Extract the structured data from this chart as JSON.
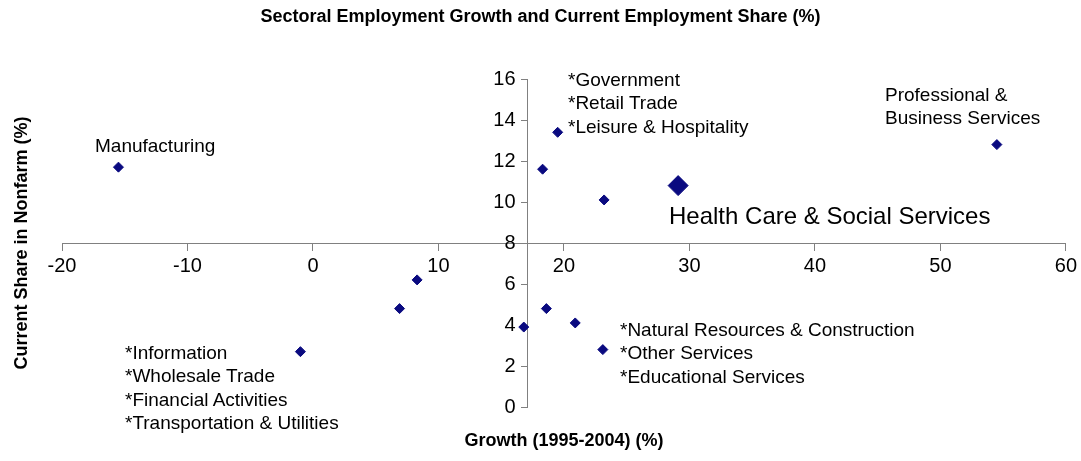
{
  "chart_data": {
    "type": "scatter",
    "title": "Sectoral Employment Growth and Current Employment Share (%)",
    "xlabel": "Growth (1995-2004) (%)",
    "ylabel": "Current Share in Nonfarm (%)",
    "xlim": [
      -20,
      60
    ],
    "xticks": [
      -20,
      -10,
      0,
      10,
      20,
      30,
      40,
      50,
      60
    ],
    "ylim": [
      0,
      16
    ],
    "yticks": [
      0,
      2,
      4,
      6,
      8,
      10,
      12,
      14,
      16
    ],
    "grid": false,
    "legend": false,
    "marker": "diamond",
    "series": [
      {
        "color": "#0a0a80",
        "x": [
          -15.5,
          18.3,
          19.5,
          23.2,
          54.5,
          8.3,
          6.9,
          -1.0,
          16.8,
          18.6,
          20.9,
          23.1
        ],
        "values": [
          11.7,
          11.6,
          13.4,
          10.1,
          12.8,
          6.2,
          4.8,
          2.7,
          3.9,
          4.8,
          4.1,
          2.8
        ]
      },
      {
        "color": "#0a0a80",
        "x": [
          29.1
        ],
        "values": [
          10.8
        ]
      }
    ],
    "annotations": [
      "Manufacturing",
      "*Government\n*Retail Trade\n*Leisure & Hospitality",
      "Professional &\nBusiness Services",
      "Health Care & Social Services",
      "*Information\n*Wholesale Trade\n*Financial Activities\n*Transportation & Utilities",
      "*Natural Resources & Construction\n*Other Services\n*Educational Services"
    ]
  }
}
